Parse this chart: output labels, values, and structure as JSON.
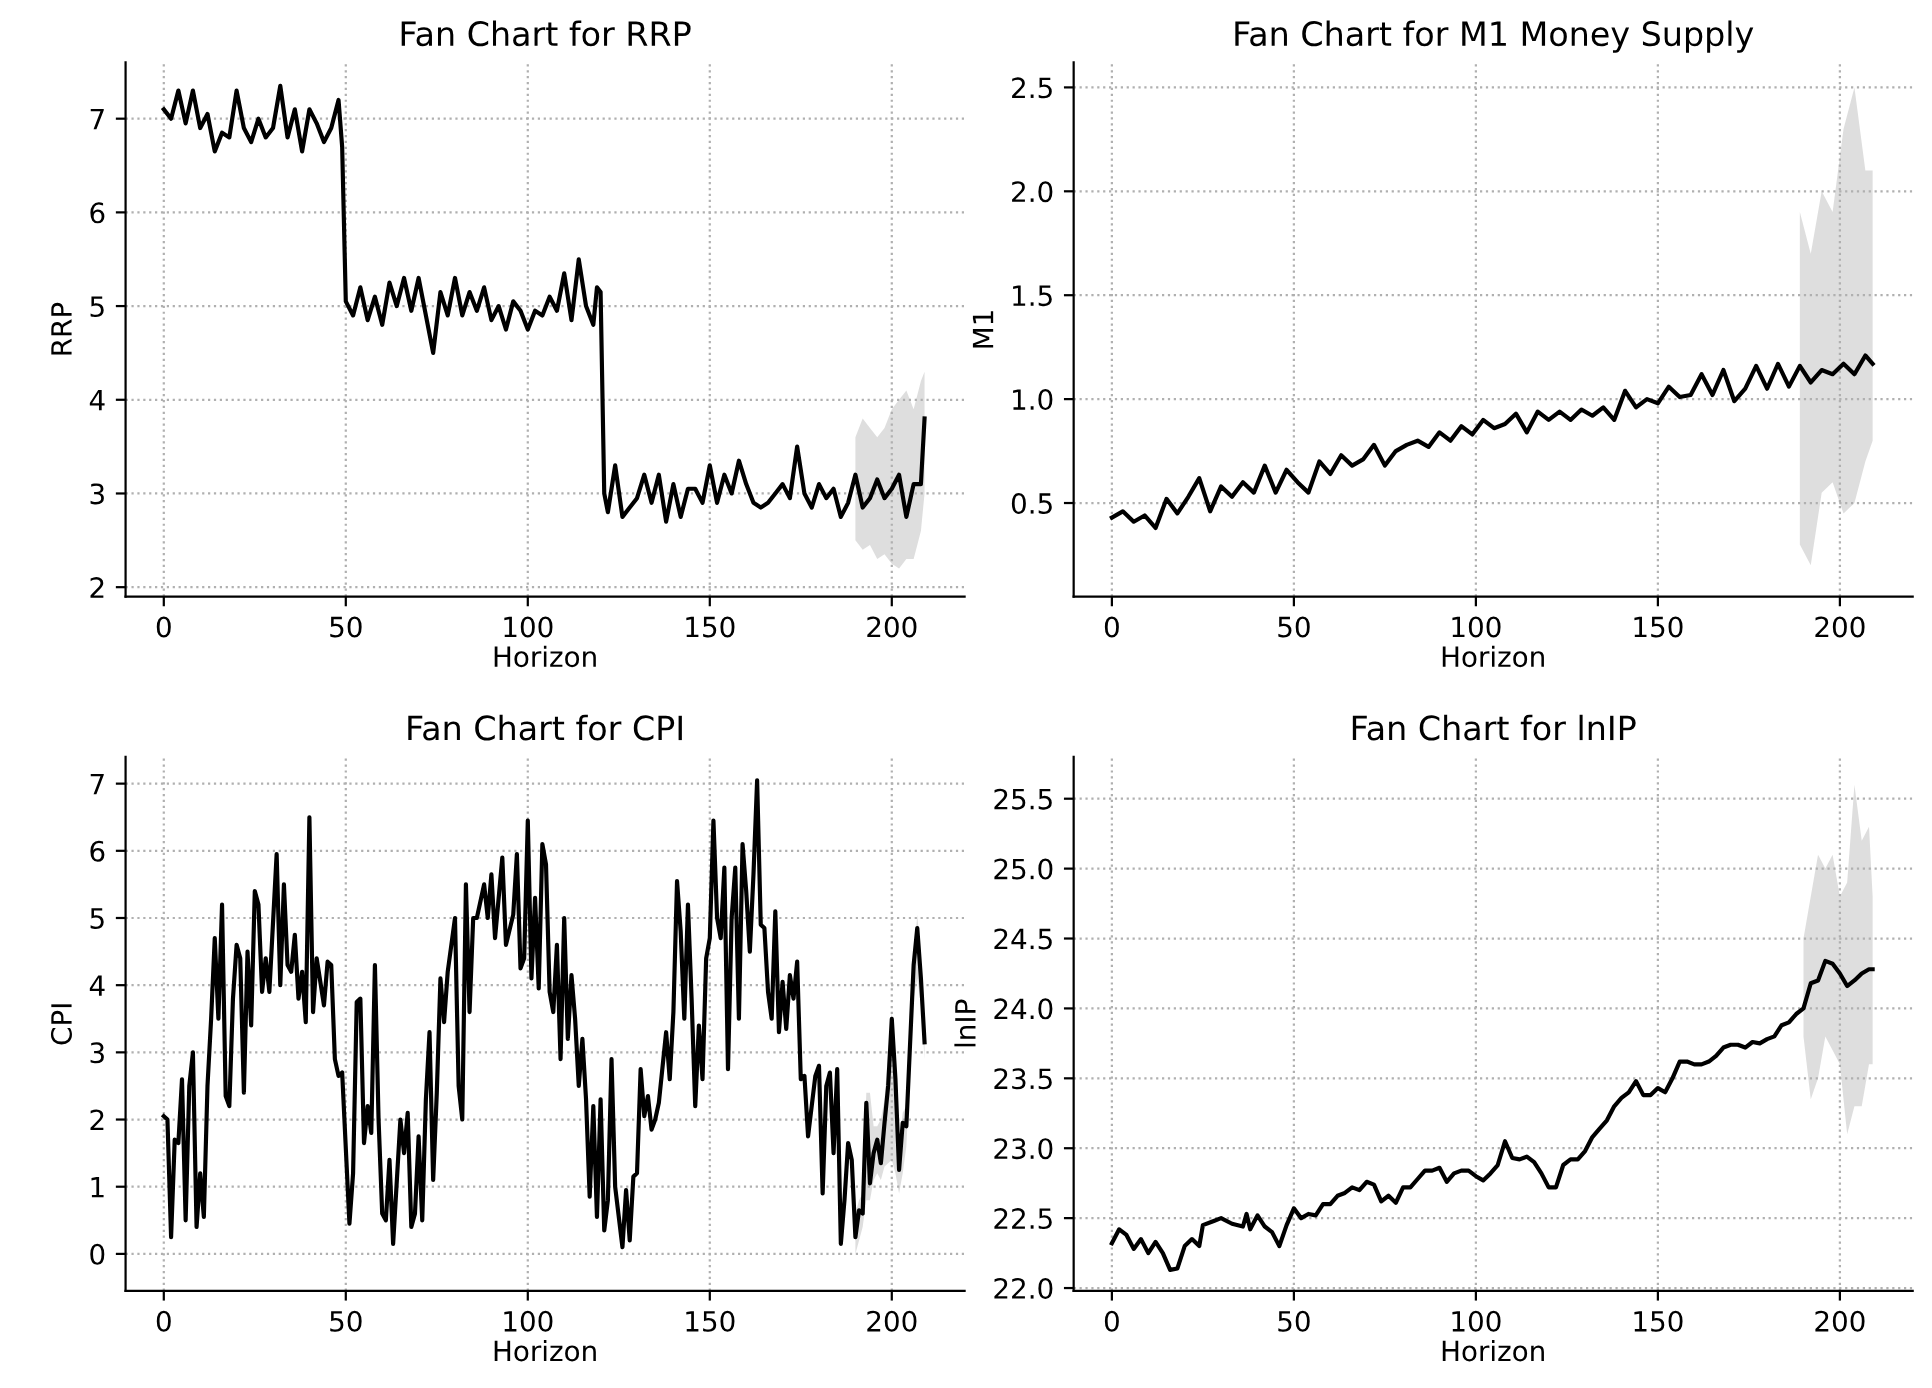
{
  "chart_data": [
    {
      "type": "line",
      "title": "Fan Chart for RRP",
      "xlabel": "Horizon",
      "ylabel": "RRP",
      "xlim": [
        -10.5,
        220
      ],
      "xticks": [
        0,
        50,
        100,
        150,
        200
      ],
      "ylim": [
        1.9,
        7.6
      ],
      "yticks": [
        2,
        3,
        4,
        5,
        6,
        7
      ],
      "grid": true,
      "legend": false,
      "marker": "none",
      "line_style": "solid",
      "series": [
        {
          "color": "#000000",
          "lower": [
            null,
            null,
            null,
            null,
            null,
            null,
            null,
            null,
            null,
            null,
            null,
            null,
            null,
            null,
            null,
            null,
            null,
            null,
            null,
            null,
            null,
            null,
            null,
            null,
            null,
            null,
            null,
            null,
            null,
            null,
            null,
            null,
            null,
            null,
            null,
            null,
            null,
            null,
            null,
            null,
            null,
            null,
            null,
            null,
            null,
            null,
            null,
            null,
            null,
            null,
            null,
            null,
            null,
            null,
            null,
            null,
            null,
            null,
            null,
            null,
            null,
            null,
            null,
            null,
            null,
            null,
            null,
            null,
            null,
            null,
            null,
            null,
            null,
            null,
            null,
            null,
            null,
            null,
            null,
            null,
            null,
            null,
            null,
            null,
            null,
            null,
            null,
            null,
            null,
            null,
            null,
            null,
            null,
            null,
            null,
            null,
            null,
            null,
            2.5,
            2.4,
            2.45,
            2.3,
            2.35,
            2.25,
            2.2,
            2.3,
            2.3,
            2.6,
            3.0
          ],
          "upper": [
            null,
            null,
            null,
            null,
            null,
            null,
            null,
            null,
            null,
            null,
            null,
            null,
            null,
            null,
            null,
            null,
            null,
            null,
            null,
            null,
            null,
            null,
            null,
            null,
            null,
            null,
            null,
            null,
            null,
            null,
            null,
            null,
            null,
            null,
            null,
            null,
            null,
            null,
            null,
            null,
            null,
            null,
            null,
            null,
            null,
            null,
            null,
            null,
            null,
            null,
            null,
            null,
            null,
            null,
            null,
            null,
            null,
            null,
            null,
            null,
            null,
            null,
            null,
            null,
            null,
            null,
            null,
            null,
            null,
            null,
            null,
            null,
            null,
            null,
            null,
            null,
            null,
            null,
            null,
            null,
            null,
            null,
            null,
            null,
            null,
            null,
            null,
            null,
            null,
            null,
            null,
            null,
            null,
            null,
            null,
            null,
            null,
            null,
            3.6,
            3.8,
            3.7,
            3.6,
            3.7,
            3.9,
            4.0,
            4.1,
            3.9,
            4.2,
            4.3
          ],
          "x": [
            0,
            2,
            4,
            6,
            8,
            10,
            12,
            14,
            16,
            18,
            20,
            22,
            24,
            26,
            28,
            30,
            32,
            34,
            36,
            38,
            40,
            42,
            44,
            46,
            48,
            49,
            50,
            52,
            54,
            56,
            58,
            60,
            62,
            64,
            66,
            68,
            70,
            72,
            74,
            76,
            78,
            80,
            82,
            84,
            86,
            88,
            90,
            92,
            94,
            96,
            98,
            100,
            102,
            104,
            106,
            108,
            110,
            112,
            114,
            116,
            118,
            119,
            120,
            121,
            122,
            124,
            126,
            128,
            130,
            132,
            134,
            136,
            138,
            140,
            142,
            144,
            146,
            148,
            150,
            152,
            154,
            156,
            158,
            160,
            162,
            164,
            166,
            168,
            170,
            172,
            174,
            176,
            178,
            180,
            182,
            184,
            186,
            188,
            190,
            192,
            194,
            196,
            198,
            200,
            202,
            204,
            206,
            208,
            209
          ],
          "values": [
            7.1,
            7.0,
            7.3,
            6.95,
            7.3,
            6.9,
            7.05,
            6.65,
            6.85,
            6.8,
            7.3,
            6.9,
            6.75,
            7.0,
            6.8,
            6.9,
            7.35,
            6.8,
            7.1,
            6.65,
            7.1,
            6.95,
            6.75,
            6.9,
            7.2,
            6.7,
            5.05,
            4.9,
            5.2,
            4.85,
            5.1,
            4.8,
            5.25,
            5.0,
            5.3,
            4.95,
            5.3,
            4.9,
            4.5,
            5.15,
            4.9,
            5.3,
            4.9,
            5.15,
            4.95,
            5.2,
            4.85,
            5.0,
            4.75,
            5.05,
            4.95,
            4.75,
            4.95,
            4.9,
            5.1,
            4.95,
            5.35,
            4.85,
            5.5,
            5.0,
            4.8,
            5.2,
            5.15,
            3.0,
            2.8,
            3.3,
            2.75,
            2.85,
            2.95,
            3.2,
            2.9,
            3.2,
            2.7,
            3.1,
            2.75,
            3.05,
            3.05,
            2.9,
            3.3,
            2.9,
            3.2,
            3.0,
            3.35,
            3.1,
            2.9,
            2.85,
            2.9,
            3.0,
            3.1,
            2.95,
            3.5,
            3.0,
            2.85,
            3.1,
            2.95,
            3.05,
            2.75,
            2.9,
            3.2,
            2.85,
            2.95,
            3.15,
            2.95,
            3.05,
            3.2,
            2.75,
            3.1,
            3.1,
            3.8
          ]
        }
      ]
    },
    {
      "type": "line",
      "title": "Fan Chart for M1 Money Supply",
      "xlabel": "Horizon",
      "ylabel": "M1",
      "xlim": [
        -10.5,
        220
      ],
      "xticks": [
        0,
        50,
        100,
        150,
        200
      ],
      "ylim": [
        0.05,
        2.62
      ],
      "yticks": [
        0.5,
        {
          "value": 1,
          "label": "1.0"
        },
        1.5,
        {
          "value": 2,
          "label": "2.0"
        },
        2.5
      ],
      "grid": true,
      "legend": false,
      "marker": "none",
      "line_style": "solid",
      "series": [
        {
          "color": "#000000",
          "lower": [
            null,
            null,
            null,
            null,
            null,
            null,
            null,
            null,
            null,
            null,
            null,
            null,
            null,
            null,
            null,
            null,
            null,
            null,
            null,
            null,
            null,
            null,
            null,
            null,
            null,
            null,
            null,
            null,
            null,
            null,
            null,
            null,
            null,
            null,
            null,
            null,
            null,
            null,
            null,
            null,
            null,
            null,
            null,
            null,
            null,
            null,
            null,
            null,
            null,
            null,
            null,
            null,
            null,
            null,
            null,
            null,
            null,
            null,
            null,
            null,
            null,
            null,
            null,
            0.3,
            0.2,
            0.55,
            0.6,
            0.45,
            0.5,
            0.7,
            0.8
          ],
          "upper": [
            null,
            null,
            null,
            null,
            null,
            null,
            null,
            null,
            null,
            null,
            null,
            null,
            null,
            null,
            null,
            null,
            null,
            null,
            null,
            null,
            null,
            null,
            null,
            null,
            null,
            null,
            null,
            null,
            null,
            null,
            null,
            null,
            null,
            null,
            null,
            null,
            null,
            null,
            null,
            null,
            null,
            null,
            null,
            null,
            null,
            null,
            null,
            null,
            null,
            null,
            null,
            null,
            null,
            null,
            null,
            null,
            null,
            null,
            null,
            null,
            null,
            null,
            null,
            1.9,
            1.7,
            2.0,
            1.9,
            2.3,
            2.5,
            2.1,
            2.1
          ],
          "x": [
            0,
            3,
            6,
            9,
            12,
            15,
            18,
            21,
            24,
            27,
            30,
            33,
            36,
            39,
            42,
            45,
            48,
            51,
            54,
            57,
            60,
            63,
            66,
            69,
            72,
            75,
            78,
            81,
            84,
            87,
            90,
            93,
            96,
            99,
            102,
            105,
            108,
            111,
            114,
            117,
            120,
            123,
            126,
            129,
            132,
            135,
            138,
            141,
            144,
            147,
            150,
            153,
            156,
            159,
            162,
            165,
            168,
            171,
            174,
            177,
            180,
            183,
            186,
            189,
            192,
            195,
            198,
            201,
            204,
            207,
            209
          ],
          "values": [
            0.43,
            0.46,
            0.41,
            0.44,
            0.38,
            0.52,
            0.45,
            0.53,
            0.62,
            0.46,
            0.58,
            0.53,
            0.6,
            0.55,
            0.68,
            0.55,
            0.66,
            0.6,
            0.55,
            0.7,
            0.64,
            0.73,
            0.68,
            0.71,
            0.78,
            0.68,
            0.75,
            0.78,
            0.8,
            0.77,
            0.84,
            0.8,
            0.87,
            0.83,
            0.9,
            0.86,
            0.88,
            0.93,
            0.84,
            0.94,
            0.9,
            0.94,
            0.9,
            0.95,
            0.92,
            0.96,
            0.9,
            1.04,
            0.96,
            1.0,
            0.98,
            1.06,
            1.01,
            1.02,
            1.12,
            1.02,
            1.14,
            0.99,
            1.05,
            1.16,
            1.05,
            1.17,
            1.06,
            1.16,
            1.08,
            1.14,
            1.12,
            1.17,
            1.12,
            1.21,
            1.17
          ]
        }
      ]
    },
    {
      "type": "line",
      "title": "Fan Chart for CPI",
      "xlabel": "Horizon",
      "ylabel": "CPI",
      "xlim": [
        -10.5,
        220
      ],
      "xticks": [
        0,
        50,
        100,
        150,
        200
      ],
      "ylim": [
        -0.55,
        7.4
      ],
      "yticks": [
        0,
        1,
        2,
        3,
        4,
        5,
        6,
        7
      ],
      "grid": true,
      "legend": false,
      "marker": "none",
      "line_style": "solid",
      "series": [
        {
          "color": "#000000",
          "lower": [
            null,
            null,
            null,
            null,
            null,
            null,
            null,
            null,
            null,
            null,
            null,
            null,
            null,
            null,
            null,
            null,
            null,
            null,
            null,
            null,
            null,
            null,
            null,
            null,
            null,
            null,
            null,
            null,
            null,
            null,
            null,
            null,
            null,
            null,
            null,
            null,
            null,
            null,
            null,
            null,
            null,
            null,
            null,
            null,
            null,
            null,
            null,
            null,
            null,
            null,
            null,
            null,
            null,
            null,
            null,
            null,
            null,
            null,
            null,
            null,
            null,
            null,
            null,
            null,
            null,
            null,
            null,
            null,
            null,
            null,
            null,
            null,
            null,
            null,
            null,
            null,
            null,
            null,
            null,
            null,
            null,
            null,
            null,
            null,
            null,
            null,
            null,
            null,
            null,
            null,
            null,
            null,
            null,
            null,
            null,
            null,
            null,
            null,
            null,
            null,
            null,
            null,
            null,
            null,
            null,
            null,
            null,
            null,
            null,
            null,
            null,
            null,
            null,
            null,
            null,
            null,
            null,
            null,
            null,
            null,
            null,
            null,
            null,
            null,
            null,
            null,
            null,
            null,
            null,
            null,
            null,
            null,
            null,
            null,
            null,
            null,
            null,
            null,
            null,
            null,
            null,
            null,
            null,
            null,
            null,
            null,
            null,
            null,
            null,
            null,
            null,
            null,
            null,
            null,
            null,
            null,
            null,
            null,
            null,
            null,
            null,
            null,
            null,
            null,
            null,
            null,
            null,
            null,
            null,
            null,
            null,
            null,
            null,
            null,
            null,
            null,
            null,
            null,
            null,
            null,
            0.0,
            0.2,
            0.4,
            0.8,
            0.8,
            1.1,
            1.2,
            1.1,
            1.3,
            1.35,
            1.4,
            1.2,
            0.9,
            1.2,
            1.6,
            3.8,
            4.1,
            3.7,
            2.9
          ],
          "upper": [
            null,
            null,
            null,
            null,
            null,
            null,
            null,
            null,
            null,
            null,
            null,
            null,
            null,
            null,
            null,
            null,
            null,
            null,
            null,
            null,
            null,
            null,
            null,
            null,
            null,
            null,
            null,
            null,
            null,
            null,
            null,
            null,
            null,
            null,
            null,
            null,
            null,
            null,
            null,
            null,
            null,
            null,
            null,
            null,
            null,
            null,
            null,
            null,
            null,
            null,
            null,
            null,
            null,
            null,
            null,
            null,
            null,
            null,
            null,
            null,
            null,
            null,
            null,
            null,
            null,
            null,
            null,
            null,
            null,
            null,
            null,
            null,
            null,
            null,
            null,
            null,
            null,
            null,
            null,
            null,
            null,
            null,
            null,
            null,
            null,
            null,
            null,
            null,
            null,
            null,
            null,
            null,
            null,
            null,
            null,
            null,
            null,
            null,
            null,
            null,
            null,
            null,
            null,
            null,
            null,
            null,
            null,
            null,
            null,
            null,
            null,
            null,
            null,
            null,
            null,
            null,
            null,
            null,
            null,
            null,
            null,
            null,
            null,
            null,
            null,
            null,
            null,
            null,
            null,
            null,
            null,
            null,
            null,
            null,
            null,
            null,
            null,
            null,
            null,
            null,
            null,
            null,
            null,
            null,
            null,
            null,
            null,
            null,
            null,
            null,
            null,
            null,
            null,
            null,
            null,
            null,
            null,
            null,
            null,
            null,
            null,
            null,
            null,
            null,
            null,
            null,
            null,
            null,
            null,
            null,
            null,
            null,
            null,
            null,
            null,
            null,
            null,
            null,
            null,
            null,
            0.6,
            0.8,
            0.9,
            2.4,
            2.4,
            1.9,
            1.9,
            2.0,
            2.3,
            3.0,
            3.6,
            2.8,
            1.6,
            2.1,
            2.2,
            4.4,
            5.05,
            4.4,
            3.4
          ],
          "x": [
            0,
            1,
            2,
            3,
            4,
            5,
            6,
            7,
            8,
            9,
            10,
            11,
            12,
            13,
            14,
            15,
            16,
            17,
            18,
            19,
            20,
            21,
            22,
            23,
            24,
            25,
            26,
            27,
            28,
            29,
            31,
            32,
            33,
            34,
            35,
            36,
            37,
            38,
            39,
            40,
            41,
            42,
            44,
            45,
            46,
            47,
            48,
            49,
            51,
            52,
            53,
            54,
            55,
            56,
            57,
            58,
            59,
            60,
            61,
            62,
            63,
            65,
            66,
            67,
            68,
            69,
            70,
            71,
            72,
            73,
            74,
            75,
            76,
            77,
            78,
            80,
            81,
            82,
            83,
            84,
            85,
            86,
            88,
            89,
            90,
            91,
            93,
            94,
            96,
            97,
            98,
            99,
            100,
            101,
            102,
            103,
            104,
            105,
            106,
            107,
            108,
            109,
            110,
            111,
            112,
            113,
            114,
            115,
            116,
            117,
            118,
            119,
            120,
            121,
            122,
            123,
            124,
            126,
            127,
            128,
            129,
            130,
            131,
            132,
            133,
            134,
            135,
            136,
            138,
            139,
            140,
            141,
            142,
            143,
            144,
            145,
            146,
            147,
            148,
            149,
            150,
            151,
            152,
            153,
            154,
            155,
            156,
            157,
            158,
            159,
            160,
            161,
            162,
            163,
            164,
            165,
            166,
            167,
            168,
            169,
            170,
            171,
            172,
            173,
            174,
            175,
            176,
            177,
            178,
            179,
            180,
            181,
            182,
            183,
            184,
            185,
            186,
            187,
            188,
            189,
            190,
            191,
            192,
            193,
            194,
            195,
            196,
            197,
            198,
            199,
            200,
            201,
            202,
            203,
            204,
            206,
            207,
            208,
            209
          ],
          "values": [
            2.05,
            2.0,
            0.25,
            1.7,
            1.65,
            2.6,
            0.5,
            2.5,
            3.0,
            0.4,
            1.2,
            0.55,
            2.5,
            3.5,
            4.7,
            3.5,
            5.2,
            2.35,
            2.2,
            3.8,
            4.6,
            4.4,
            2.4,
            4.5,
            3.4,
            5.4,
            5.2,
            3.9,
            4.4,
            3.9,
            5.95,
            4.0,
            5.5,
            4.3,
            4.2,
            4.75,
            3.8,
            4.2,
            3.45,
            6.5,
            3.6,
            4.4,
            3.7,
            4.35,
            4.3,
            2.9,
            2.65,
            2.7,
            0.45,
            1.2,
            3.75,
            3.8,
            1.65,
            2.2,
            1.8,
            4.3,
            2.0,
            0.6,
            0.5,
            1.4,
            0.15,
            2.0,
            1.5,
            2.1,
            0.4,
            0.6,
            1.75,
            0.5,
            2.3,
            3.3,
            1.1,
            2.4,
            4.1,
            3.45,
            4.2,
            5.0,
            2.5,
            2.0,
            5.5,
            3.6,
            5.0,
            5.0,
            5.5,
            5.0,
            5.65,
            4.7,
            5.9,
            4.6,
            5.05,
            5.95,
            4.25,
            4.4,
            6.45,
            4.1,
            5.3,
            3.95,
            6.1,
            5.8,
            3.9,
            3.6,
            4.6,
            2.9,
            5.0,
            3.2,
            4.15,
            3.5,
            2.5,
            3.2,
            2.3,
            0.85,
            2.2,
            0.55,
            2.3,
            0.35,
            0.8,
            2.9,
            1.0,
            0.1,
            0.95,
            0.2,
            1.15,
            1.2,
            2.75,
            2.05,
            2.35,
            1.85,
            2.0,
            2.25,
            3.3,
            2.6,
            3.6,
            5.55,
            4.8,
            3.5,
            5.2,
            3.8,
            2.2,
            3.4,
            2.6,
            4.4,
            4.7,
            6.45,
            5.0,
            4.7,
            5.75,
            2.75,
            5.0,
            5.75,
            3.5,
            6.1,
            5.4,
            4.5,
            5.65,
            7.05,
            4.9,
            4.85,
            3.9,
            3.5,
            5.1,
            3.3,
            4.05,
            3.35,
            4.15,
            3.8,
            4.35,
            2.6,
            2.65,
            1.75,
            2.2,
            2.65,
            2.8,
            0.9,
            2.5,
            2.7,
            1.5,
            2.75,
            0.15,
            0.8,
            1.65,
            1.4,
            0.25,
            0.65,
            0.6,
            2.25,
            1.05,
            1.5,
            1.7,
            1.35,
            1.95,
            2.5,
            3.5,
            2.6,
            1.25,
            1.95,
            1.9,
            4.3,
            4.85,
            4.1,
            3.15
          ]
        }
      ]
    },
    {
      "type": "line",
      "title": "Fan Chart for lnIP",
      "xlabel": "Horizon",
      "ylabel": "lnIP",
      "xlim": [
        -10.5,
        220
      ],
      "xticks": [
        0,
        50,
        100,
        150,
        200
      ],
      "ylim": [
        21.98,
        25.8
      ],
      "yticks": [
        {
          "value": 22,
          "label": "22.0"
        },
        22.5,
        {
          "value": 23,
          "label": "23.0"
        },
        23.5,
        {
          "value": 24,
          "label": "24.0"
        },
        24.5,
        {
          "value": 25,
          "label": "25.0"
        },
        25.5
      ],
      "grid": true,
      "legend": false,
      "marker": "none",
      "line_style": "solid",
      "series": [
        {
          "color": "#000000",
          "lower": [
            null,
            null,
            null,
            null,
            null,
            null,
            null,
            null,
            null,
            null,
            null,
            null,
            null,
            null,
            null,
            null,
            null,
            null,
            null,
            null,
            null,
            null,
            null,
            null,
            null,
            null,
            null,
            null,
            null,
            null,
            null,
            null,
            null,
            null,
            null,
            null,
            null,
            null,
            null,
            null,
            null,
            null,
            null,
            null,
            null,
            null,
            null,
            null,
            null,
            null,
            null,
            null,
            null,
            null,
            null,
            null,
            null,
            null,
            null,
            null,
            null,
            null,
            null,
            null,
            null,
            null,
            null,
            null,
            null,
            null,
            null,
            null,
            null,
            null,
            null,
            null,
            null,
            null,
            null,
            null,
            null,
            null,
            null,
            null,
            null,
            null,
            null,
            null,
            null,
            null,
            null,
            null,
            null,
            null,
            null,
            23.8,
            23.35,
            23.5,
            23.8,
            23.7,
            23.6,
            23.1,
            23.3,
            23.3,
            23.6,
            23.6
          ],
          "upper": [
            null,
            null,
            null,
            null,
            null,
            null,
            null,
            null,
            null,
            null,
            null,
            null,
            null,
            null,
            null,
            null,
            null,
            null,
            null,
            null,
            null,
            null,
            null,
            null,
            null,
            null,
            null,
            null,
            null,
            null,
            null,
            null,
            null,
            null,
            null,
            null,
            null,
            null,
            null,
            null,
            null,
            null,
            null,
            null,
            null,
            null,
            null,
            null,
            null,
            null,
            null,
            null,
            null,
            null,
            null,
            null,
            null,
            null,
            null,
            null,
            null,
            null,
            null,
            null,
            null,
            null,
            null,
            null,
            null,
            null,
            null,
            null,
            null,
            null,
            null,
            null,
            null,
            null,
            null,
            null,
            null,
            null,
            null,
            null,
            null,
            null,
            null,
            null,
            null,
            null,
            null,
            null,
            null,
            null,
            null,
            24.5,
            24.8,
            25.1,
            25.0,
            25.1,
            24.8,
            24.9,
            25.6,
            25.2,
            25.3,
            24.8
          ],
          "x": [
            0,
            2,
            4,
            6,
            8,
            10,
            12,
            14,
            16,
            18,
            20,
            22,
            24,
            25,
            28,
            30,
            33,
            36,
            37,
            38,
            40,
            42,
            44,
            46,
            48,
            50,
            52,
            54,
            56,
            58,
            60,
            62,
            64,
            66,
            68,
            70,
            72,
            74,
            76,
            78,
            80,
            82,
            84,
            86,
            88,
            90,
            92,
            94,
            96,
            98,
            100,
            102,
            104,
            106,
            108,
            110,
            112,
            114,
            116,
            118,
            120,
            122,
            124,
            126,
            128,
            130,
            132,
            134,
            136,
            138,
            140,
            142,
            144,
            146,
            148,
            150,
            152,
            154,
            156,
            158,
            160,
            162,
            164,
            166,
            168,
            170,
            172,
            174,
            176,
            178,
            180,
            182,
            184,
            186,
            188,
            190,
            192,
            194,
            196,
            198,
            200,
            202,
            204,
            206,
            208,
            209
          ],
          "values": [
            22.32,
            22.42,
            22.38,
            22.28,
            22.35,
            22.25,
            22.33,
            22.25,
            22.13,
            22.14,
            22.3,
            22.35,
            22.3,
            22.45,
            22.48,
            22.5,
            22.46,
            22.44,
            22.53,
            22.42,
            22.52,
            22.44,
            22.4,
            22.3,
            22.45,
            22.57,
            22.5,
            22.53,
            22.52,
            22.6,
            22.6,
            22.66,
            22.68,
            22.72,
            22.7,
            22.76,
            22.74,
            22.62,
            22.66,
            22.61,
            22.72,
            22.72,
            22.78,
            22.84,
            22.84,
            22.86,
            22.76,
            22.82,
            22.84,
            22.84,
            22.8,
            22.77,
            22.82,
            22.88,
            23.05,
            22.93,
            22.92,
            22.94,
            22.9,
            22.82,
            22.72,
            22.72,
            22.88,
            22.92,
            22.92,
            22.98,
            23.08,
            23.14,
            23.2,
            23.3,
            23.36,
            23.4,
            23.48,
            23.38,
            23.38,
            23.43,
            23.4,
            23.5,
            23.62,
            23.62,
            23.6,
            23.6,
            23.62,
            23.66,
            23.72,
            23.74,
            23.74,
            23.72,
            23.76,
            23.75,
            23.78,
            23.8,
            23.88,
            23.9,
            23.96,
            24.0,
            24.18,
            24.2,
            24.34,
            24.32,
            24.25,
            24.16,
            24.2,
            24.25,
            24.28,
            24.28
          ]
        }
      ]
    }
  ]
}
